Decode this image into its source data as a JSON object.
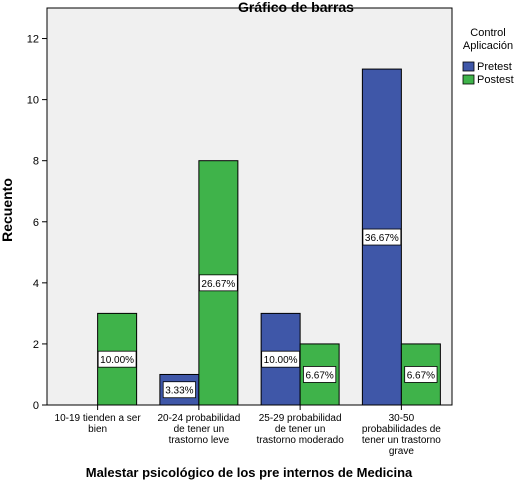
{
  "chart_data": {
    "type": "bar",
    "title": "Gráfico de barras",
    "x_label": "Malestar psicológico de los pre internos de Medicina",
    "y_label": "Recuento",
    "legend_title": "Control\nAplicación",
    "legend": "right",
    "categories": [
      "10-19 tienden a ser\nbien",
      "20-24 probabilidad\nde tener un\ntrastorno leve",
      "25-29 probabilidad\nde tener un\ntrastorno moderado",
      "30-50\nprobabilidades de\ntener un trastorno\ngrave"
    ],
    "series": [
      {
        "name": "Pretest",
        "color": "#3f57a8",
        "values": [
          0,
          1,
          3,
          11
        ],
        "value_labels": [
          null,
          "3.33%",
          "10.00%",
          "36.67%"
        ]
      },
      {
        "name": "Postest",
        "color": "#3fb34a",
        "values": [
          3,
          8,
          2,
          2
        ],
        "value_labels": [
          "10.00%",
          "26.67%",
          "6.67%",
          "6.67%"
        ]
      }
    ],
    "ylim": [
      0,
      13
    ],
    "yticks": [
      0,
      2,
      4,
      6,
      8,
      10,
      12
    ],
    "grid": false
  }
}
